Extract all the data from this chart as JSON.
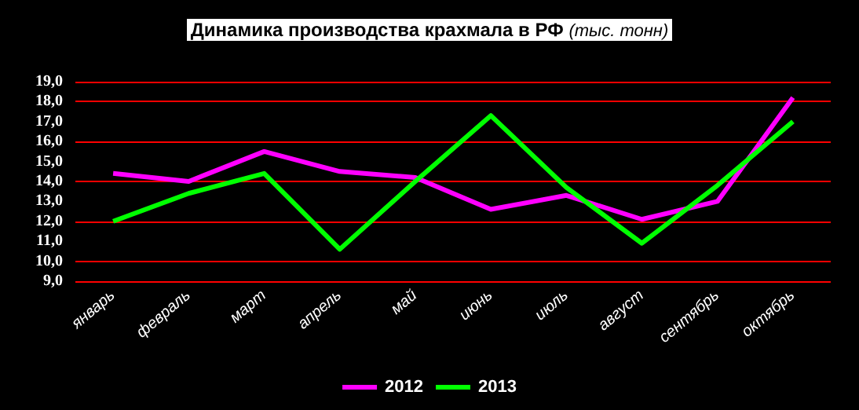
{
  "chart_data": {
    "type": "line",
    "title": "Динамика производства крахмала в РФ",
    "subtitle": "(тыс. тонн)",
    "categories": [
      "январь",
      "февраль",
      "март",
      "апрель",
      "май",
      "июнь",
      "июль",
      "август",
      "сентябрь",
      "октябрь"
    ],
    "series": [
      {
        "name": "2012",
        "color": "#ff00ff",
        "values": [
          14.4,
          14.0,
          15.5,
          14.5,
          14.2,
          12.6,
          13.3,
          12.1,
          13.0,
          18.2
        ]
      },
      {
        "name": "2013",
        "color": "#00ff00",
        "values": [
          12.0,
          13.4,
          14.4,
          10.6,
          14.0,
          17.3,
          13.7,
          10.9,
          13.8,
          17.0
        ]
      }
    ],
    "ylim": [
      9,
      19
    ],
    "yticks": [
      {
        "value": 9,
        "label": "9,0"
      },
      {
        "value": 10,
        "label": "10,0"
      },
      {
        "value": 11,
        "label": "11,0"
      },
      {
        "value": 12,
        "label": "12,0"
      },
      {
        "value": 13,
        "label": "13,0"
      },
      {
        "value": 14,
        "label": "14,0"
      },
      {
        "value": 15,
        "label": "15,0"
      },
      {
        "value": 16,
        "label": "16,0"
      },
      {
        "value": 17,
        "label": "17,0"
      },
      {
        "value": 18,
        "label": "18,0"
      },
      {
        "value": 19,
        "label": "19,0"
      }
    ],
    "grid": "y",
    "legend": "bottom",
    "marker": "none",
    "line_style": "solid"
  }
}
